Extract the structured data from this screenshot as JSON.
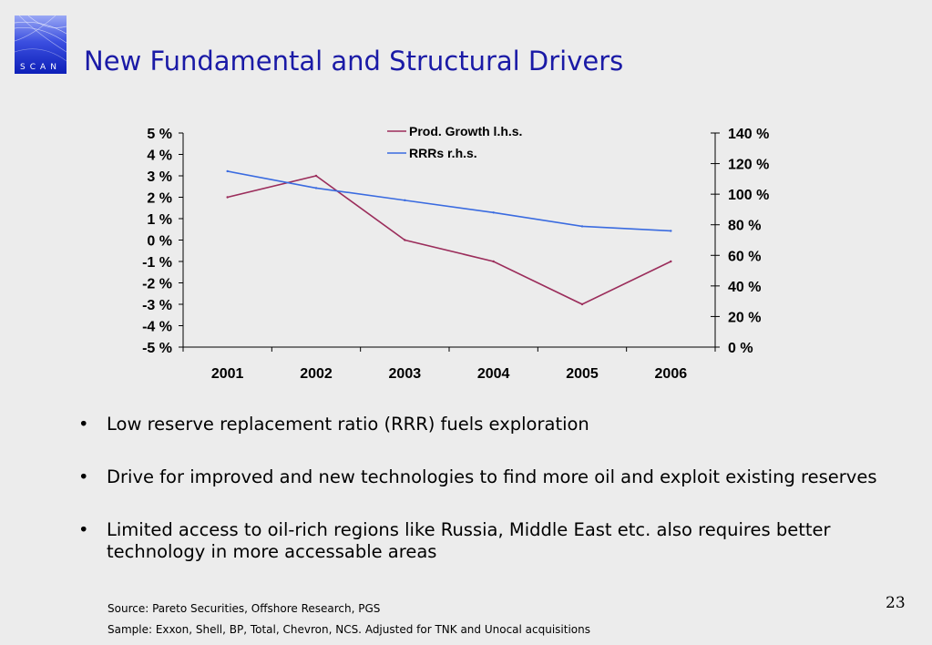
{
  "logo": {
    "text": "SCAN",
    "icon": "scan-logo"
  },
  "title": "New Fundamental and Structural Drivers",
  "chart_data": {
    "type": "line",
    "categories": [
      "2001",
      "2002",
      "2003",
      "2004",
      "2005",
      "2006"
    ],
    "y_left": {
      "min": -5,
      "max": 5,
      "step": 1,
      "ticks": [
        "5 %",
        "4 %",
        "3 %",
        "2 %",
        "1 %",
        "0 %",
        "-1 %",
        "-2 %",
        "-3 %",
        "-4 %",
        "-5 %"
      ]
    },
    "y_right": {
      "min": 0,
      "max": 140,
      "step": 20,
      "ticks": [
        "140 %",
        "120 %",
        "100 %",
        "80 %",
        "60 %",
        "40 %",
        "20 %",
        "0 %"
      ]
    },
    "series": [
      {
        "name": "Prod. Growth l.h.s.",
        "axis": "left",
        "color": "#9b2d5b",
        "values": [
          2,
          3,
          0,
          -1,
          -3,
          -1
        ]
      },
      {
        "name": "RRRs r.h.s.",
        "axis": "right",
        "color": "#3a6be0",
        "values": [
          115,
          104,
          96,
          88,
          79,
          76
        ]
      }
    ],
    "legend": "top-center",
    "grid": false
  },
  "bullets": [
    "Low reserve replacement ratio (RRR) fuels exploration",
    "Drive for improved and new technologies to find more oil and exploit existing reserves",
    "Limited access to oil-rich regions like Russia, Middle East etc. also requires better technology in more accessable areas"
  ],
  "bullet_symbol": "•",
  "footnotes": {
    "source": "Source: Pareto Securities, Offshore Research, PGS",
    "sample": "Sample: Exxon, Shell, BP, Total, Chevron, NCS. Adjusted for TNK and Unocal acquisitions"
  },
  "page_number": "23"
}
